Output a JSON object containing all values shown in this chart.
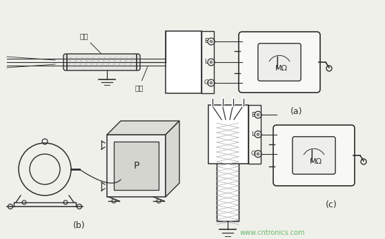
{
  "bg_color": "#f0f0eb",
  "line_color": "#2a2a2a",
  "watermark_color": "#5ab55a",
  "watermark_text": "www.cntronics.com",
  "label_a": "(a)",
  "label_b": "(b)",
  "label_c": "(c)",
  "label_gangguan": "鈢管",
  "label_daoxian": "导线",
  "label_MOhm": "MΩ"
}
